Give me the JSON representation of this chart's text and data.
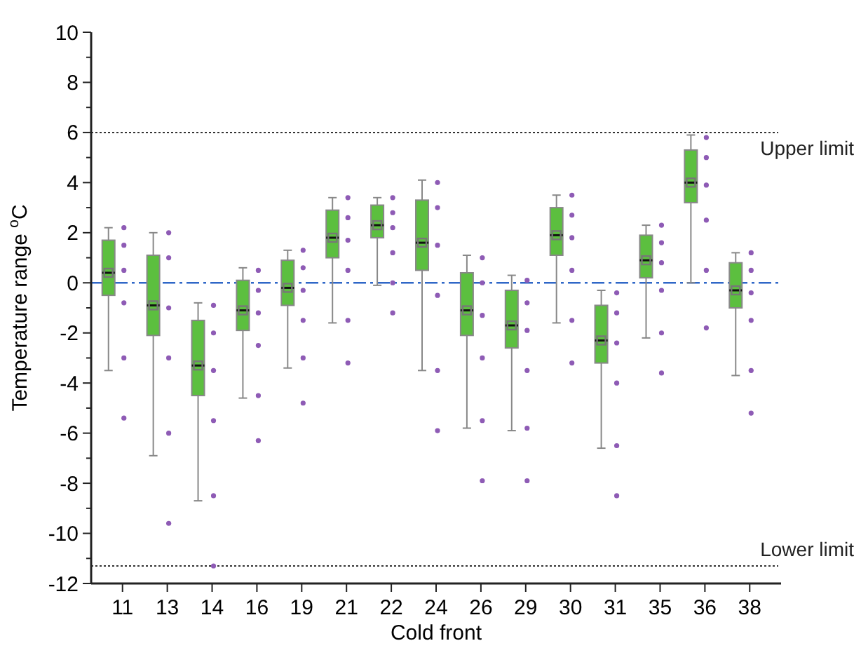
{
  "chart_data": {
    "type": "box",
    "xlabel": "Cold front",
    "ylabel": "Temperature range $^{o}$C",
    "categories": [
      "11",
      "13",
      "14",
      "16",
      "19",
      "21",
      "22",
      "24",
      "26",
      "29",
      "30",
      "31",
      "35",
      "36",
      "38"
    ],
    "ylim": [
      -12,
      10
    ],
    "yticks": [
      -12,
      {
        "value": -11,
        "label": null
      },
      -10,
      {
        "value": -9,
        "label": null
      },
      -8,
      {
        "value": -7,
        "label": null
      },
      -6,
      {
        "value": -5,
        "label": null
      },
      -4,
      {
        "value": -3,
        "label": null
      },
      -2,
      {
        "value": -1,
        "label": null
      },
      0,
      {
        "value": 1,
        "label": null
      },
      2,
      {
        "value": 3,
        "label": null
      },
      4,
      {
        "value": 5,
        "label": null
      },
      6,
      {
        "value": 7,
        "label": null
      },
      8,
      {
        "value": 9,
        "label": null
      },
      10
    ],
    "grid": false,
    "series": [
      {
        "type": "box",
        "color": "#5cbf3f",
        "boxes": [
          {
            "low": -3.5,
            "q1": -0.5,
            "median": 0.4,
            "q3": 1.7,
            "high": 2.2,
            "mean": 0.4
          },
          {
            "low": -6.9,
            "q1": -2.1,
            "median": -0.9,
            "q3": 1.1,
            "high": 2.0,
            "mean": -0.9
          },
          {
            "low": -8.7,
            "q1": -4.5,
            "median": -3.3,
            "q3": -1.5,
            "high": -0.8,
            "mean": -3.3
          },
          {
            "low": -4.6,
            "q1": -1.9,
            "median": -1.1,
            "q3": 0.1,
            "high": 0.6,
            "mean": -1.1
          },
          {
            "low": -3.4,
            "q1": -0.9,
            "median": -0.2,
            "q3": 0.9,
            "high": 1.3,
            "mean": -0.2
          },
          {
            "low": -1.6,
            "q1": 1.0,
            "median": 1.8,
            "q3": 2.9,
            "high": 3.4,
            "mean": 1.8
          },
          {
            "low": -0.1,
            "q1": 1.8,
            "median": 2.3,
            "q3": 3.1,
            "high": 3.4,
            "mean": 2.3
          },
          {
            "low": -3.5,
            "q1": 0.5,
            "median": 1.6,
            "q3": 3.3,
            "high": 4.1,
            "mean": 1.6
          },
          {
            "low": -5.8,
            "q1": -2.1,
            "median": -1.1,
            "q3": 0.4,
            "high": 1.1,
            "mean": -1.1
          },
          {
            "low": -5.9,
            "q1": -2.6,
            "median": -1.7,
            "q3": -0.3,
            "high": 0.3,
            "mean": -1.7
          },
          {
            "low": -1.6,
            "q1": 1.1,
            "median": 1.9,
            "q3": 3.0,
            "high": 3.5,
            "mean": 1.9
          },
          {
            "low": -6.6,
            "q1": -3.2,
            "median": -2.3,
            "q3": -0.9,
            "high": -0.3,
            "mean": -2.3
          },
          {
            "low": -2.2,
            "q1": 0.2,
            "median": 0.9,
            "q3": 1.9,
            "high": 2.3,
            "mean": 0.9
          },
          {
            "low": 0.0,
            "q1": 3.2,
            "median": 4.0,
            "q3": 5.3,
            "high": 5.9,
            "mean": 4.0
          },
          {
            "low": -3.7,
            "q1": -1.0,
            "median": -0.3,
            "q3": 0.8,
            "high": 1.2,
            "mean": -0.3
          }
        ]
      },
      {
        "type": "scatter",
        "color": "#8e5bb5",
        "marker": "circle",
        "x": [
          "11",
          "11",
          "11",
          "11",
          "11",
          "11",
          "13",
          "13",
          "13",
          "13",
          "13",
          "13",
          "14",
          "14",
          "14",
          "14",
          "14",
          "14",
          "16",
          "16",
          "16",
          "16",
          "16",
          "16",
          "19",
          "19",
          "19",
          "19",
          "19",
          "19",
          "21",
          "21",
          "21",
          "21",
          "21",
          "21",
          "22",
          "22",
          "22",
          "22",
          "22",
          "22",
          "24",
          "24",
          "24",
          "24",
          "24",
          "24",
          "26",
          "26",
          "26",
          "26",
          "26",
          "26",
          "29",
          "29",
          "29",
          "29",
          "29",
          "29",
          "30",
          "30",
          "30",
          "30",
          "30",
          "30",
          "31",
          "31",
          "31",
          "31",
          "31",
          "31",
          "35",
          "35",
          "35",
          "35",
          "35",
          "35",
          "36",
          "36",
          "36",
          "36",
          "36",
          "36",
          "38",
          "38",
          "38",
          "38",
          "38",
          "38"
        ],
        "values": [
          2.2,
          1.5,
          0.5,
          -0.8,
          -3.0,
          -5.4,
          2.0,
          1.0,
          -1.0,
          -3.0,
          -6.0,
          -9.6,
          -0.9,
          -2.0,
          -3.5,
          -5.5,
          -8.5,
          -11.3,
          0.5,
          -0.3,
          -1.2,
          -2.5,
          -4.5,
          -6.3,
          1.3,
          0.6,
          -0.3,
          -1.5,
          -3.0,
          -4.8,
          3.4,
          2.6,
          1.7,
          0.5,
          -1.5,
          -3.2,
          3.4,
          2.8,
          2.2,
          1.2,
          0.0,
          -1.2,
          4.0,
          3.0,
          1.5,
          -0.5,
          -3.5,
          -5.9,
          1.0,
          0.0,
          -1.3,
          -3.0,
          -5.5,
          -7.9,
          0.1,
          -0.8,
          -1.9,
          -3.5,
          -5.8,
          -7.9,
          3.5,
          2.7,
          1.8,
          0.5,
          -1.5,
          -3.2,
          -0.4,
          -1.2,
          -2.4,
          -4.0,
          -6.5,
          -8.5,
          2.3,
          1.6,
          0.8,
          -0.3,
          -2.0,
          -3.6,
          5.8,
          5.0,
          3.9,
          2.5,
          0.5,
          -1.8,
          1.2,
          0.5,
          -0.4,
          -1.5,
          -3.5,
          -5.2
        ]
      }
    ],
    "ref_lines": [
      {
        "axis": "y",
        "value": 6,
        "label": "Upper limit",
        "color": "#333333",
        "line_style": "dotted"
      },
      {
        "axis": "y",
        "value": -11.3,
        "label": "Lower limit",
        "color": "#333333",
        "line_style": "dotted"
      },
      {
        "axis": "y",
        "value": 0,
        "color": "#2f67c7",
        "line_style": "dashed"
      }
    ]
  }
}
